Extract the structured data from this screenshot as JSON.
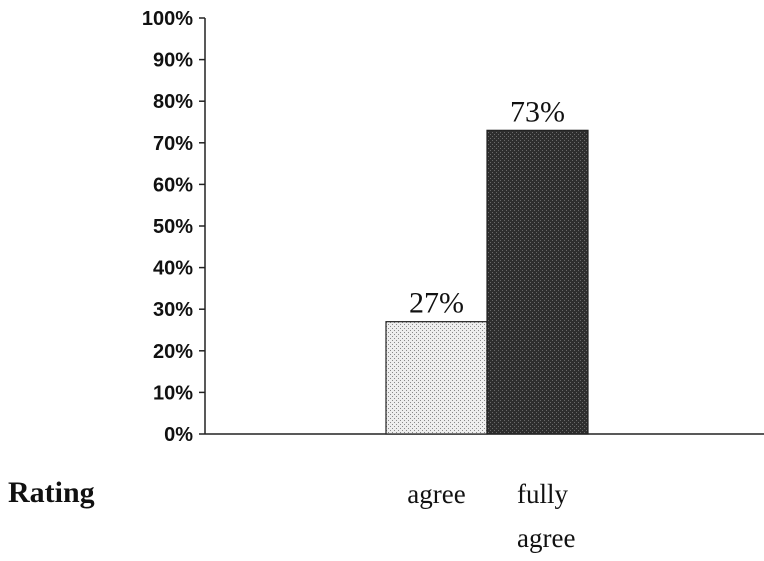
{
  "chart_data": {
    "type": "bar",
    "title": "",
    "xlabel": "Rating",
    "ylabel": "",
    "categories": [
      "",
      "",
      "agree",
      "fully agree"
    ],
    "category_lines": [
      [],
      [],
      [
        "agree"
      ],
      [
        "fully",
        "agree"
      ]
    ],
    "values": [
      0,
      0,
      27,
      73
    ],
    "data_labels": [
      "",
      "",
      "27%",
      "73%"
    ],
    "ylim": [
      0,
      100
    ],
    "yticks": [
      "0%",
      "10%",
      "20%",
      "30%",
      "40%",
      "50%",
      "60%",
      "70%",
      "80%",
      "90%",
      "100%"
    ],
    "grid": false,
    "legend": "none",
    "bar_colors": [
      "#d9d9d9",
      "#d9d9d9",
      "#d9d9d9",
      "#3a3a3a"
    ]
  }
}
